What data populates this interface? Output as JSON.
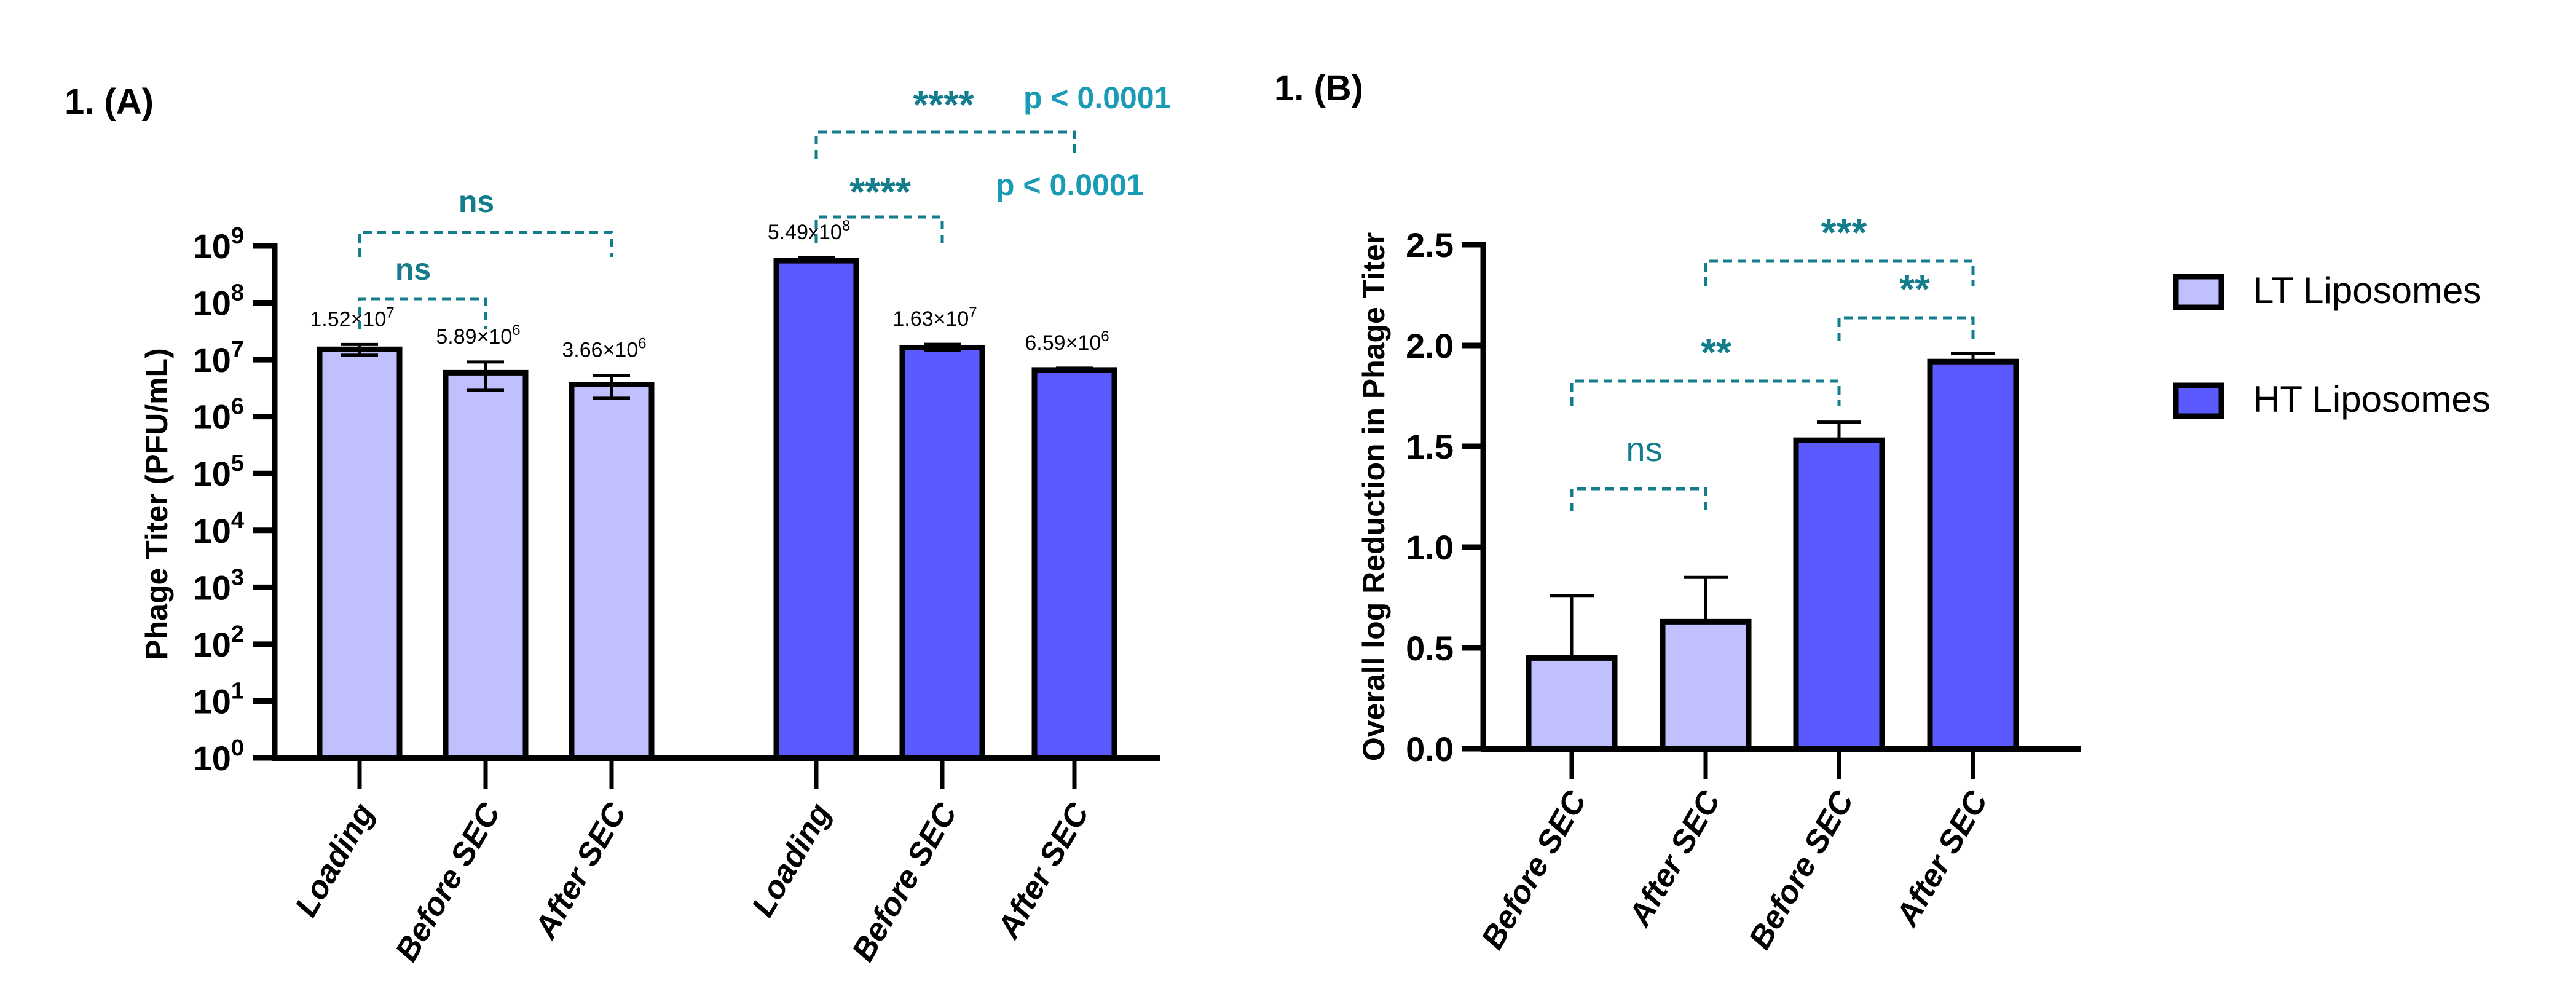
{
  "colors": {
    "lt": "#c0c0ff",
    "ht": "#5a5aff",
    "sig_stars": "#137d8e",
    "sig_p": "#1a9bb5",
    "axis": "#000000"
  },
  "legend": {
    "position": "right",
    "items": [
      {
        "label": "LT Liposomes",
        "color_key": "lt"
      },
      {
        "label": "HT Liposomes",
        "color_key": "ht"
      }
    ]
  },
  "chart_data": [
    {
      "id": "A",
      "panel_label": "1. (A)",
      "type": "bar",
      "yscale": "log",
      "ylabel": "Phage Titer (PFU/mL)",
      "xlabel": "",
      "ylim": [
        1,
        1000000000
      ],
      "yticks": [
        {
          "base": "10",
          "exp": "0",
          "value": 1
        },
        {
          "base": "10",
          "exp": "1",
          "value": 10
        },
        {
          "base": "10",
          "exp": "2",
          "value": 100
        },
        {
          "base": "10",
          "exp": "3",
          "value": 1000
        },
        {
          "base": "10",
          "exp": "4",
          "value": 10000
        },
        {
          "base": "10",
          "exp": "5",
          "value": 100000
        },
        {
          "base": "10",
          "exp": "6",
          "value": 1000000
        },
        {
          "base": "10",
          "exp": "7",
          "value": 10000000
        },
        {
          "base": "10",
          "exp": "8",
          "value": 100000000
        },
        {
          "base": "10",
          "exp": "9",
          "value": 1000000000
        }
      ],
      "grid": false,
      "categories": [
        "Loading",
        "Before SEC",
        "After SEC",
        "Loading",
        "Before SEC",
        "After SEC"
      ],
      "bars": [
        {
          "category": "Loading",
          "group": "lt",
          "value": 15200000,
          "err_low": 12000000,
          "err_high": 18500000,
          "label_mant": "1.52×10",
          "label_exp": "7"
        },
        {
          "category": "Before SEC",
          "group": "lt",
          "value": 5890000,
          "err_low": 2900000,
          "err_high": 9100000,
          "label_mant": "5.89×10",
          "label_exp": "6"
        },
        {
          "category": "After SEC",
          "group": "lt",
          "value": 3660000,
          "err_low": 2100000,
          "err_high": 5300000,
          "label_mant": "3.66×10",
          "label_exp": "6"
        },
        {
          "category": "Loading",
          "group": "ht",
          "value": 549000000,
          "err_low": 549000000,
          "err_high": 620000000,
          "label_mant": "5.49x10",
          "label_exp": "8"
        },
        {
          "category": "Before SEC",
          "group": "ht",
          "value": 16300000,
          "err_low": 14500000,
          "err_high": 18600000,
          "label_mant": "1.63×10",
          "label_exp": "7"
        },
        {
          "category": "After SEC",
          "group": "ht",
          "value": 6590000,
          "err_low": 6590000,
          "err_high": 7100000,
          "label_mant": "6.59×10",
          "label_exp": "6"
        }
      ],
      "significance": [
        {
          "from": 0,
          "to": 1,
          "text": "ns",
          "p": ""
        },
        {
          "from": 0,
          "to": 2,
          "text": "ns",
          "p": ""
        },
        {
          "from": 3,
          "to": 4,
          "text": "****",
          "p": "p < 0.0001"
        },
        {
          "from": 3,
          "to": 5,
          "text": "****",
          "p": "p < 0.0001"
        }
      ]
    },
    {
      "id": "B",
      "panel_label": "1. (B)",
      "type": "bar",
      "yscale": "linear",
      "ylabel": "Overall log Reduction in Phage Titer",
      "xlabel": "",
      "ylim": [
        0,
        2.5
      ],
      "yticks": [
        {
          "label": "0.0",
          "value": 0
        },
        {
          "label": "0.5",
          "value": 0.5
        },
        {
          "label": "1.0",
          "value": 1.0
        },
        {
          "label": "1.5",
          "value": 1.5
        },
        {
          "label": "2.0",
          "value": 2.0
        },
        {
          "label": "2.5",
          "value": 2.5
        }
      ],
      "grid": false,
      "categories": [
        "Before SEC",
        "After SEC",
        "Before SEC",
        "After SEC"
      ],
      "bars": [
        {
          "category": "Before SEC",
          "group": "lt",
          "value": 0.45,
          "err_high": 0.76
        },
        {
          "category": "After SEC",
          "group": "lt",
          "value": 0.63,
          "err_high": 0.85
        },
        {
          "category": "Before SEC",
          "group": "ht",
          "value": 1.53,
          "err_high": 1.62
        },
        {
          "category": "After SEC",
          "group": "ht",
          "value": 1.92,
          "err_high": 1.96
        }
      ],
      "significance": [
        {
          "from": 0,
          "to": 1,
          "text": "ns"
        },
        {
          "from": 0,
          "to": 2,
          "text": "**"
        },
        {
          "from": 2,
          "to": 3,
          "text": "**"
        },
        {
          "from": 1,
          "to": 3,
          "text": "***"
        }
      ]
    }
  ]
}
